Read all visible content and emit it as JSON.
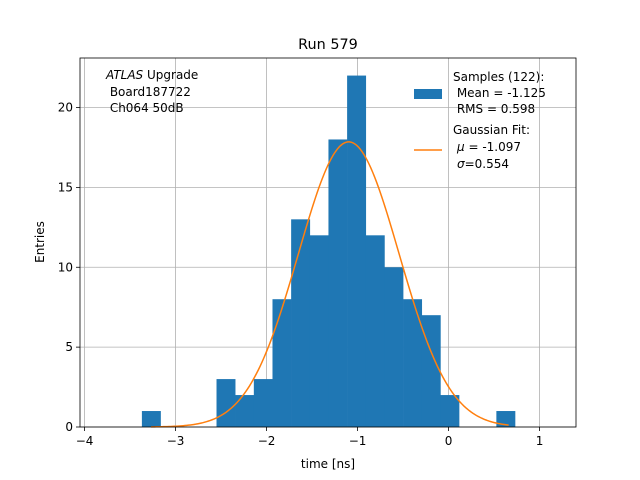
{
  "chart_data": {
    "type": "bar",
    "title": "Run 579",
    "xlabel": "time [ns]",
    "ylabel": "Entries",
    "xlim": [
      -4.05,
      1.4
    ],
    "ylim": [
      0,
      23.1
    ],
    "grid": true,
    "x_ticks": [
      -4,
      -3,
      -2,
      -1,
      0,
      1
    ],
    "x_tick_labels": [
      "−4",
      "−3",
      "−2",
      "−1",
      "0",
      "1"
    ],
    "y_ticks": [
      0,
      5,
      10,
      15,
      20
    ],
    "y_tick_labels": [
      "0",
      "5",
      "10",
      "15",
      "20"
    ],
    "annotation": {
      "italic": "ATLAS",
      "line1_rest": " Upgrade",
      "line2": " Board187722",
      "line3": " Ch064 50dB"
    },
    "histogram": {
      "color": "#1f77b4",
      "bin_edges": [
        -3.37,
        -3.165,
        -2.96,
        -2.755,
        -2.55,
        -2.345,
        -2.14,
        -1.935,
        -1.73,
        -1.525,
        -1.32,
        -1.115,
        -0.91,
        -0.705,
        -0.5,
        -0.295,
        -0.09,
        0.115,
        0.32,
        0.525,
        0.73
      ],
      "counts": [
        1,
        0,
        0,
        0,
        3,
        2,
        3,
        8,
        13,
        12,
        18,
        22,
        12,
        10,
        8,
        7,
        2,
        0,
        0,
        1
      ]
    },
    "fit": {
      "color": "#ff7f0e",
      "mu": -1.097,
      "sigma": 0.554,
      "amplitude": 17.85,
      "x_range": [
        -3.27,
        0.66
      ]
    },
    "legend": {
      "placement": "top-right",
      "samples": {
        "line1": "Samples (122):",
        "line2": " Mean = -1.125",
        "line3": " RMS = 0.598"
      },
      "fit": {
        "line1": "Gaussian Fit:",
        "mu_symbol": "μ",
        "mu_text": " = -1.097",
        "sigma_symbol": "σ",
        "sigma_text": "=0.554"
      }
    }
  }
}
